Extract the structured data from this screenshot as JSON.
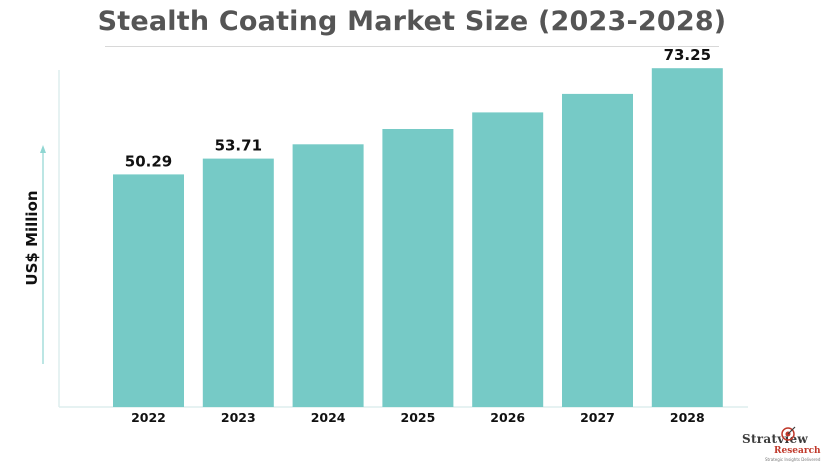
{
  "title": "Stealth Coating Market Size (2023-2028)",
  "logo": {
    "name": "Stratview",
    "sub": "Research",
    "tagline": "Strategic Insights Delivered",
    "accent_color": "#c0392b"
  },
  "chart_data": {
    "type": "bar",
    "title": "Stealth Coating Market Size (2023-2028)",
    "xlabel": "",
    "ylabel": "US$ Million",
    "categories": [
      "2022",
      "2023",
      "2024",
      "2025",
      "2026",
      "2027",
      "2028"
    ],
    "values": [
      50.29,
      53.71,
      56.8,
      60.1,
      63.7,
      67.7,
      73.25
    ],
    "data_labels": [
      "50.29",
      "53.71",
      "",
      "",
      "",
      "",
      "73.25"
    ],
    "ylim": [
      0,
      80
    ],
    "grid": false,
    "bar_color": "#76cac6",
    "axis_color": "#ddeeee"
  }
}
